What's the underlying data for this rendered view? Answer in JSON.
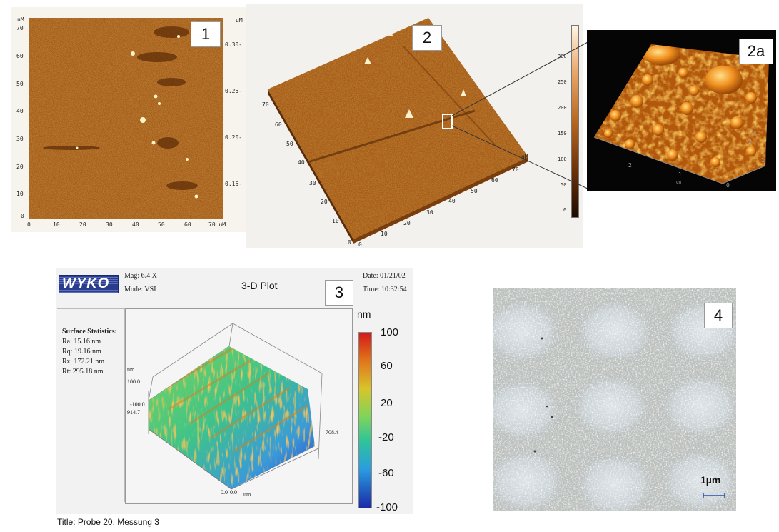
{
  "panel1": {
    "label": "1",
    "x_ticks": [
      "0",
      "10",
      "20",
      "30",
      "40",
      "50",
      "60",
      "70 uM"
    ],
    "y_ticks": [
      "70",
      "60",
      "50",
      "40",
      "30",
      "20",
      "10",
      "0"
    ],
    "y_unit": "uM",
    "right_unit": "uM",
    "right_ticks": [
      "0.30-",
      "0.25-",
      "0.20-",
      "0.15-"
    ]
  },
  "panel2": {
    "label": "2",
    "left_axis_ticks": [
      "70",
      "60",
      "50",
      "40",
      "30",
      "20",
      "10",
      "0"
    ],
    "bottom_axis_ticks": [
      "0",
      "10",
      "20",
      "30",
      "40",
      "50",
      "60",
      "70"
    ],
    "axis_unit": "uM",
    "scale_ticks": [
      "300",
      "250",
      "200",
      "150",
      "100",
      "50",
      "0"
    ]
  },
  "panel2a": {
    "label": "2a",
    "axis_ticks_x": [
      "2",
      "1",
      "0"
    ],
    "axis_ticks_y": [
      "2",
      "1"
    ],
    "axis_unit": "um"
  },
  "panel3": {
    "label": "3",
    "logo": "WYKO",
    "mag": "Mag: 6.4 X",
    "mode": "Mode: VSI",
    "plot_title": "3-D Plot",
    "date": "Date: 01/21/02",
    "time": "Time: 10:32:54",
    "stats_title": "Surface Statistics:",
    "stats": [
      "Ra: 15.16 nm",
      "Rq: 19.16 nm",
      "Rz: 172.21 nm",
      "Rt: 295.18 nm"
    ],
    "z_unit": "nm",
    "z_top": "100.0",
    "z_bottom": "-100.0",
    "y_extent": "914.7",
    "x_extent": "708.4",
    "origin_a": "0.0",
    "origin_b": "0.0",
    "base_unit": "um",
    "colorbar_unit": "nm",
    "colorbar_ticks": [
      "100",
      "60",
      "20",
      "-20",
      "-60",
      "-100"
    ],
    "footer": "Title: Probe 20, Messung 3"
  },
  "panel4": {
    "label": "4",
    "scale_label": "1µm"
  }
}
